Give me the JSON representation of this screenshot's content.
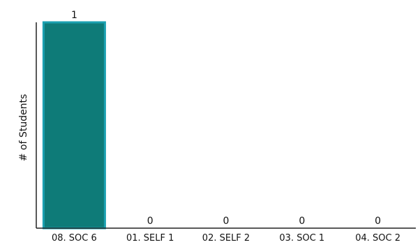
{
  "chart_data": {
    "type": "bar",
    "categories": [
      "08. SOC 6",
      "01. SELF 1",
      "02. SELF 2",
      "03. SOC 1",
      "04. SOC 2"
    ],
    "values": [
      1,
      0,
      0,
      0,
      0
    ],
    "data_labels": [
      "1",
      "0",
      "0",
      "0",
      "0"
    ],
    "title": "",
    "xlabel": "",
    "ylabel": "# of Students",
    "ylim": [
      0,
      1
    ],
    "grid": false,
    "legend": "none",
    "colors": {
      "bar_fill": "#0e7b78",
      "bar_stroke": "#1aa0b0",
      "axis": "#222222"
    }
  }
}
